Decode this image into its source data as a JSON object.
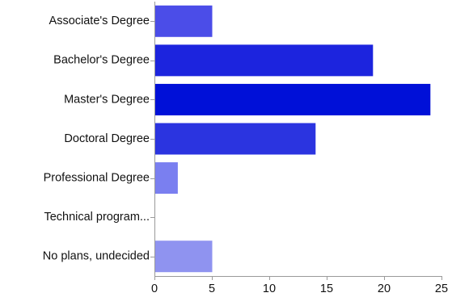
{
  "chart_data": {
    "type": "bar",
    "orientation": "horizontal",
    "categories": [
      "Associate's Degree",
      "Bachelor's Degree",
      "Master's Degree",
      "Doctoral Degree",
      "Professional Degree",
      "Technical program...",
      "No plans, undecided"
    ],
    "values": [
      5,
      19,
      24,
      14,
      2,
      0,
      5
    ],
    "colors": [
      "#4b4de8",
      "#1c24de",
      "#0010d8",
      "#2b34e0",
      "#7a7ff0",
      "#9da1f2",
      "#8f93f0"
    ],
    "xlim": [
      0,
      25
    ],
    "xticks": [
      0,
      5,
      10,
      15,
      20,
      25
    ],
    "grid": false,
    "title": "",
    "xlabel": "",
    "ylabel": ""
  }
}
